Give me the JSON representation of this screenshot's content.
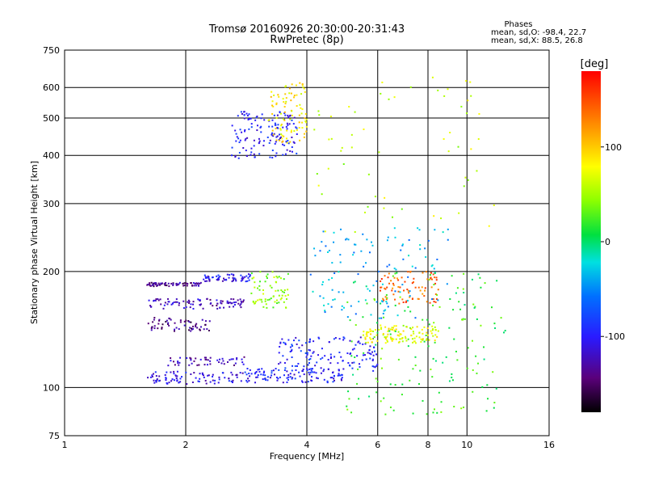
{
  "header": {
    "title_line1": "Tromsø 20160926 20:30:00-20:31:43",
    "title_line2": "RwPretec (8p)"
  },
  "stats": {
    "heading": "Phases",
    "line_o": "mean, sd,O: -98.4, 22.7",
    "line_x": "mean, sd,X:  88.5, 26.8"
  },
  "colorbar": {
    "unit_label": "[deg]",
    "range": [
      -180,
      180
    ],
    "ticks": [
      100,
      0,
      -100
    ],
    "tick_labels": [
      "100",
      "0",
      "-100"
    ]
  },
  "chart_data": {
    "type": "scatter",
    "xlabel": "Frequency [MHz]",
    "ylabel": "Stationary phase Virtual Height [km]",
    "x_scale": "log2",
    "y_scale": "log",
    "xlim": [
      1,
      16
    ],
    "ylim": [
      75,
      750
    ],
    "x_ticks": [
      1,
      2,
      4,
      6,
      8,
      10,
      16
    ],
    "x_tick_labels": [
      "1",
      "2",
      "4",
      "6",
      "8",
      "10",
      "16"
    ],
    "y_ticks": [
      75,
      100,
      200,
      300,
      400,
      500,
      600,
      750
    ],
    "y_tick_labels": [
      "75",
      "100",
      "200",
      "300",
      "400",
      "500",
      "600",
      "750"
    ],
    "grid": true,
    "colormap": "rainbow (black-purple-blue-cyan-green-yellow-orange-red)",
    "color_variable": "phase [deg]",
    "clusters": [
      {
        "description": "O-mode low trace",
        "x_range": [
          1.6,
          2.8
        ],
        "y_range": [
          102,
          110
        ],
        "phase": -110,
        "count": 90
      },
      {
        "description": "O-mode low trace",
        "x_range": [
          2.8,
          4.9
        ],
        "y_range": [
          103,
          112
        ],
        "phase": -100,
        "count": 110
      },
      {
        "description": "O-mode low trace",
        "x_range": [
          1.8,
          2.8
        ],
        "y_range": [
          114,
          120
        ],
        "phase": -125,
        "count": 50
      },
      {
        "description": "rising trace",
        "x_range": [
          3.4,
          6.0
        ],
        "y_range": [
          110,
          135
        ],
        "phase": -95,
        "count": 140
      },
      {
        "description": "rising trace",
        "x_range": [
          5.5,
          8.5
        ],
        "y_range": [
          130,
          145
        ],
        "phase": 75,
        "count": 120
      },
      {
        "description": "F1 branch",
        "x_range": [
          1.6,
          2.2
        ],
        "y_range": [
          183,
          187
        ],
        "phase": -135,
        "count": 70
      },
      {
        "description": "F1 branch",
        "x_range": [
          2.2,
          2.9
        ],
        "y_range": [
          188,
          197
        ],
        "phase": -105,
        "count": 60
      },
      {
        "description": "F1 branch",
        "x_range": [
          1.6,
          2.8
        ],
        "y_range": [
          160,
          170
        ],
        "phase": -125,
        "count": 90
      },
      {
        "description": "F1 branch",
        "x_range": [
          1.6,
          2.3
        ],
        "y_range": [
          140,
          152
        ],
        "phase": -140,
        "count": 60
      },
      {
        "description": "X-mode cusp",
        "x_range": [
          2.9,
          3.6
        ],
        "y_range": [
          160,
          200
        ],
        "phase": 45,
        "count": 70
      },
      {
        "description": "F2 O-mode",
        "x_range": [
          2.6,
          3.8
        ],
        "y_range": [
          390,
          520
        ],
        "phase": -100,
        "count": 140
      },
      {
        "description": "F2 X-mode",
        "x_range": [
          3.2,
          4.0
        ],
        "y_range": [
          430,
          620
        ],
        "phase": 85,
        "count": 90
      },
      {
        "description": "spread",
        "x_range": [
          6.0,
          8.5
        ],
        "y_range": [
          165,
          200
        ],
        "phase": 140,
        "count": 80
      },
      {
        "description": "spread",
        "x_range": [
          4.0,
          9.0
        ],
        "y_range": [
          150,
          260
        ],
        "phase": -40,
        "count": 120
      },
      {
        "description": "spread",
        "x_range": [
          5.0,
          12.5
        ],
        "y_range": [
          85,
          200
        ],
        "phase": 20,
        "count": 160
      },
      {
        "description": "scattered high",
        "x_range": [
          4.0,
          12.0
        ],
        "y_range": [
          250,
          650
        ],
        "phase": 60,
        "count": 60
      }
    ]
  }
}
